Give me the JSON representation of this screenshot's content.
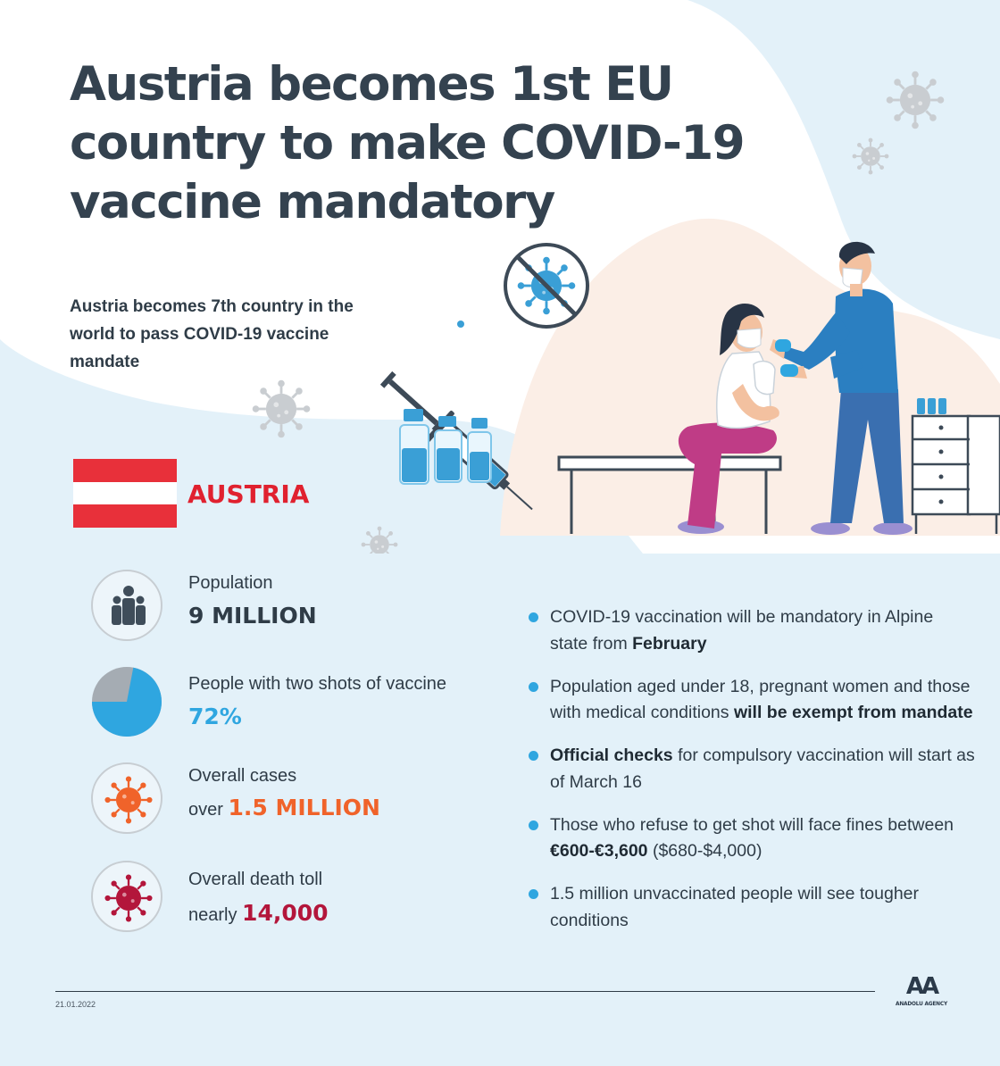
{
  "title": "Austria becomes 1st EU country to make COVID-19 vaccine mandatory",
  "subtitle": "Austria becomes 7th country in the world to pass COVID-19 vaccine mandate",
  "country": "AUSTRIA",
  "stats": {
    "population": {
      "label": "Population",
      "value": "9 MILLION"
    },
    "vaccinated": {
      "label": "People with two shots of vaccine",
      "value": "72%",
      "percent": 72
    },
    "cases": {
      "label": "Overall cases",
      "prefix": "over",
      "value": "1.5 MILLION"
    },
    "deaths": {
      "label": "Overall death toll",
      "prefix": "nearly",
      "value": "14,000"
    }
  },
  "bullets": [
    {
      "parts": [
        {
          "t": "COVID-19 vaccination will be mandatory in Alpine state from "
        },
        {
          "t": "February",
          "b": true
        }
      ]
    },
    {
      "parts": [
        {
          "t": "Population aged under 18, pregnant women and those with medical conditions "
        },
        {
          "t": "will be exempt from mandate",
          "b": true
        }
      ]
    },
    {
      "parts": [
        {
          "t": "Official checks",
          "b": true
        },
        {
          "t": " for compulsory vaccination will start as of March 16"
        }
      ]
    },
    {
      "parts": [
        {
          "t": "Those who refuse to get shot will face fines between "
        },
        {
          "t": "€600-€3,600",
          "b": true
        },
        {
          "t": " ($680-$4,000)"
        }
      ]
    },
    {
      "parts": [
        {
          "t": "1.5 million unvaccinated people will see tougher conditions"
        }
      ]
    }
  ],
  "footer": {
    "date": "21.01.2022",
    "logo_text": "AA",
    "agency": "ANADOLU AGENCY"
  },
  "colors": {
    "background": "#e3f1f9",
    "title": "#34424f",
    "flag_red": "#e8303a",
    "country": "#e0212f",
    "blue_accent": "#2fa6e0",
    "orange": "#f0632a",
    "dark_red": "#b3163b",
    "pie_grey": "#a5acb3"
  },
  "icons": [
    "population-icon",
    "pie-chart-icon",
    "virus-orange-icon",
    "virus-red-icon",
    "no-virus-sign-icon",
    "syringe-icon",
    "vial-icon",
    "virus-decor-icon"
  ]
}
